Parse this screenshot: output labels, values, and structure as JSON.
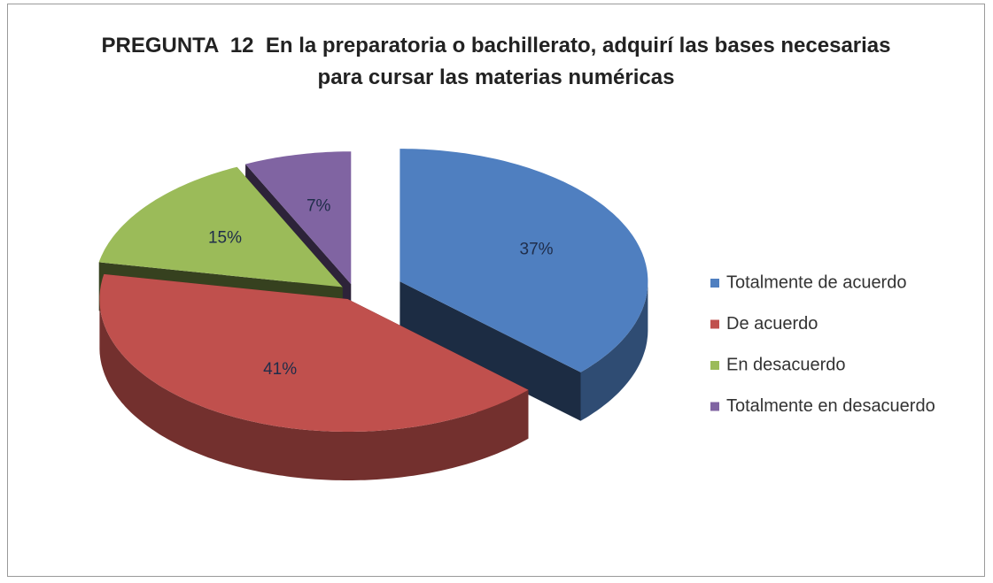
{
  "chart_data": {
    "type": "pie",
    "title": "PREGUNTA  12  En la preparatoria o bachillerato, adquirí las bases necesarias para cursar las materias numéricas",
    "categories": [
      "Totalmente de acuerdo",
      "De acuerdo",
      "En desacuerdo",
      "Totalmente en desacuerdo"
    ],
    "values": [
      37,
      41,
      15,
      7
    ],
    "value_labels": [
      "37%",
      "41%",
      "15%",
      "7%"
    ],
    "colors": [
      "#4f7fc0",
      "#c0504d",
      "#9bbb59",
      "#8064a2"
    ],
    "legend": "right"
  }
}
